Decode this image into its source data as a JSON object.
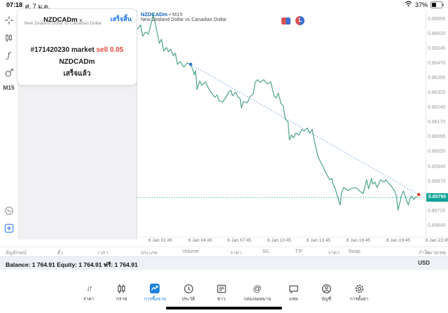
{
  "status_bar": {
    "time": "07:18",
    "date": "ศ. 7 ม.ค.",
    "battery_percent": "37%"
  },
  "sidebar": {
    "timeframe_label": "M15"
  },
  "trade_panel": {
    "symbol": "NZDCADm",
    "symbol_description": "New Zealand Dollar vs Canadian Dollar",
    "done_button": "เสร็จสิ้น",
    "order_id_and_type": "#171420230 market",
    "order_action": "sell 0.05",
    "order_symbol": "NZDCADm",
    "order_status": "เสร็จแล้ว"
  },
  "chart_header": {
    "symbol": "NZDCADm",
    "bullet": "•",
    "timeframe": "M15",
    "description": "New Zealand Dollar vs Canadian Dollar"
  },
  "chart_data": {
    "type": "line",
    "title": "NZDCADm M15",
    "ylabel": "price",
    "grid": false,
    "y_axis_labels": [
      "0.86695",
      "0.86620",
      "0.86545",
      "0.86470",
      "0.86395",
      "0.86320",
      "0.86245",
      "0.86170",
      "0.86095",
      "0.86020",
      "0.85945",
      "0.85870",
      "0.85795",
      "0.85720",
      "0.85645"
    ],
    "x_axis_labels": [
      {
        "label": "6 Jan 01:45",
        "hour": 1.75
      },
      {
        "label": "6 Jan 04:45",
        "hour": 4.75
      },
      {
        "label": "6 Jan 07:45",
        "hour": 7.75
      },
      {
        "label": "6 Jan 10:45",
        "hour": 10.75
      },
      {
        "label": "6 Jan 13:45",
        "hour": 13.75
      },
      {
        "label": "6 Jan 16:45",
        "hour": 16.75
      },
      {
        "label": "6 Jan 19:45",
        "hour": 19.75
      },
      {
        "label": "6 Jan 22:45",
        "hour": 22.75
      }
    ],
    "x_range_hours": [
      0,
      21.84
    ],
    "y_range": [
      0.85591,
      0.86723
    ],
    "current_price": "0.85790",
    "current_price_value": 0.8579,
    "series": [
      {
        "name": "NZDCADm close",
        "points": [
          [
            0,
            0.86645
          ],
          [
            0.26,
            0.86667
          ],
          [
            0.42,
            0.8661
          ],
          [
            0.63,
            0.86631
          ],
          [
            0.84,
            0.8662
          ],
          [
            1,
            0.86659
          ],
          [
            1.21,
            0.86723
          ],
          [
            1.42,
            0.86659
          ],
          [
            1.68,
            0.86574
          ],
          [
            1.84,
            0.86595
          ],
          [
            2,
            0.86535
          ],
          [
            2.21,
            0.86553
          ],
          [
            2.37,
            0.86531
          ],
          [
            2.53,
            0.86545
          ],
          [
            2.74,
            0.8651
          ],
          [
            2.89,
            0.86524
          ],
          [
            3.05,
            0.86467
          ],
          [
            3.26,
            0.86481
          ],
          [
            3.53,
            0.86453
          ],
          [
            3.79,
            0.86474
          ],
          [
            4.05,
            0.86467
          ],
          [
            4.21,
            0.86439
          ],
          [
            4.32,
            0.86414
          ],
          [
            4.42,
            0.86435
          ],
          [
            4.53,
            0.86339
          ],
          [
            4.74,
            0.86382
          ],
          [
            4.89,
            0.8636
          ],
          [
            5.16,
            0.86378
          ],
          [
            5.42,
            0.86343
          ],
          [
            5.63,
            0.86321
          ],
          [
            5.89,
            0.863
          ],
          [
            6.05,
            0.86311
          ],
          [
            6.21,
            0.86282
          ],
          [
            6.47,
            0.86275
          ],
          [
            6.68,
            0.86296
          ],
          [
            6.95,
            0.86328
          ],
          [
            7.11,
            0.86335
          ],
          [
            7.21,
            0.86307
          ],
          [
            7.47,
            0.86325
          ],
          [
            7.63,
            0.863
          ],
          [
            7.79,
            0.86293
          ],
          [
            7.89,
            0.86246
          ],
          [
            8.05,
            0.86278
          ],
          [
            8.32,
            0.86271
          ],
          [
            8.53,
            0.863
          ],
          [
            8.79,
            0.86318
          ],
          [
            8.95,
            0.86378
          ],
          [
            9.11,
            0.86389
          ],
          [
            9.32,
            0.86375
          ],
          [
            9.58,
            0.86389
          ],
          [
            9.84,
            0.86368
          ],
          [
            10.11,
            0.86378
          ],
          [
            10.37,
            0.86307
          ],
          [
            10.53,
            0.86296
          ],
          [
            10.68,
            0.86321
          ],
          [
            10.89,
            0.86268
          ],
          [
            11.05,
            0.86257
          ],
          [
            11.21,
            0.86189
          ],
          [
            11.42,
            0.86175
          ],
          [
            11.53,
            0.86083
          ],
          [
            11.68,
            0.86108
          ],
          [
            11.84,
            0.86093
          ],
          [
            12,
            0.86118
          ],
          [
            12.26,
            0.86108
          ],
          [
            12.47,
            0.86136
          ],
          [
            12.63,
            0.86129
          ],
          [
            12.89,
            0.86143
          ],
          [
            13.05,
            0.86118
          ],
          [
            13.26,
            0.86136
          ],
          [
            13.42,
            0.86076
          ],
          [
            13.68,
            0.86001
          ],
          [
            13.84,
            0.85976
          ],
          [
            14.05,
            0.85951
          ],
          [
            14.32,
            0.85912
          ],
          [
            14.58,
            0.8588
          ],
          [
            14.74,
            0.85887
          ],
          [
            14.84,
            0.85858
          ],
          [
            15,
            0.85834
          ],
          [
            15.16,
            0.85798
          ],
          [
            15.37,
            0.85752
          ],
          [
            15.47,
            0.85812
          ],
          [
            15.63,
            0.85841
          ],
          [
            15.79,
            0.85834
          ],
          [
            15.95,
            0.85826
          ],
          [
            16.21,
            0.85834
          ],
          [
            16.47,
            0.85841
          ],
          [
            16.68,
            0.85834
          ],
          [
            16.84,
            0.85823
          ],
          [
            17.11,
            0.85809
          ],
          [
            17.26,
            0.85848
          ],
          [
            17.37,
            0.8588
          ],
          [
            17.53,
            0.85834
          ],
          [
            17.74,
            0.85887
          ],
          [
            17.84,
            0.85858
          ],
          [
            18,
            0.85869
          ],
          [
            18.16,
            0.85841
          ],
          [
            18.32,
            0.85862
          ],
          [
            18.42,
            0.8588
          ],
          [
            18.68,
            0.85869
          ],
          [
            18.84,
            0.8588
          ],
          [
            18.95,
            0.85869
          ],
          [
            19.11,
            0.85858
          ],
          [
            19.32,
            0.85841
          ],
          [
            19.47,
            0.85826
          ],
          [
            19.63,
            0.85798
          ],
          [
            19.74,
            0.85727
          ],
          [
            19.89,
            0.85762
          ],
          [
            20,
            0.85798
          ],
          [
            20.16,
            0.85823
          ],
          [
            20.26,
            0.85805
          ],
          [
            20.42,
            0.85773
          ],
          [
            20.53,
            0.85752
          ],
          [
            20.68,
            0.85787
          ],
          [
            20.79,
            0.85798
          ],
          [
            20.95,
            0.8578
          ],
          [
            21.11,
            0.85794
          ],
          [
            21.21,
            0.8579
          ]
        ]
      }
    ],
    "trendline": {
      "from": [
        4.05,
        0.86467
      ],
      "to": [
        21.32,
        0.85805
      ]
    },
    "colors": {
      "line": "#57a893",
      "trend": "#6b9fd8",
      "current_line": "#2aa79b",
      "price_tag_bg": "#0aa396",
      "start_dot": "#2e6fd0",
      "end_dot": "#d8443a"
    }
  },
  "positions_table": {
    "columns": [
      "สัญลักษณ์",
      "ตั๋ว",
      "เวลา",
      "ประเภท",
      "Volume",
      "ราคา",
      "S/L",
      "T/P",
      "ราคา",
      "Swap",
      "กำไร",
      "หมายเหตุ"
    ]
  },
  "account_bar": {
    "summary": "Balance: 1 764.91 Equity: 1 764.91 ฟรี: 1 764.91",
    "currency": "USD"
  },
  "tab_bar": {
    "active_index": 2,
    "items": [
      {
        "label": "ราคา"
      },
      {
        "label": "กราฟ"
      },
      {
        "label": "การซื้อขาย"
      },
      {
        "label": "ประวัติ"
      },
      {
        "label": "ข่าว"
      },
      {
        "label": "กล่องจดหมาย"
      },
      {
        "label": "แชท"
      },
      {
        "label": "บัญชี"
      },
      {
        "label": "การตั้งค่า"
      }
    ]
  }
}
